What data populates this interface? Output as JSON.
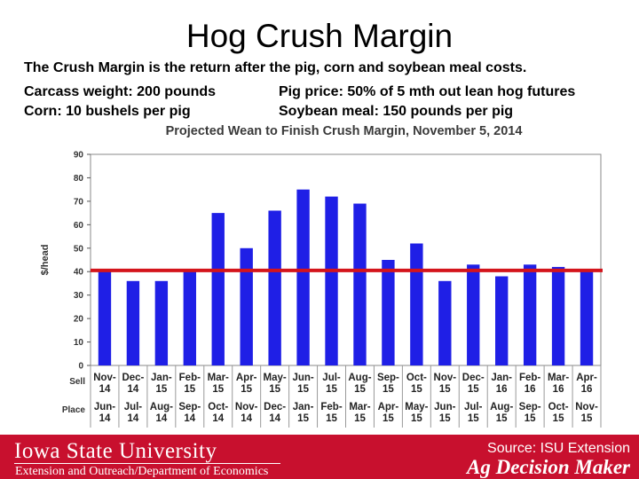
{
  "slide": {
    "title": "Hog Crush Margin",
    "line1": "The Crush Margin is the return after the pig, corn and soybean meal costs.",
    "line2_left": "Carcass weight:  200 pounds",
    "line2_right": "Pig price:  50% of 5 mth out lean hog futures",
    "line3_left": "Corn:  10 bushels per pig",
    "line3_right": "Soybean meal:  150 pounds per pig"
  },
  "footer": {
    "university": "Iowa State University",
    "department": "Extension and Outreach/Department of Economics",
    "source": "Source: ISU Extension",
    "brand": "Ag Decision Maker",
    "bar_color": "#c8102e"
  },
  "chart_data": {
    "type": "bar",
    "title": "Projected Wean to Finish Crush Margin, November 5, 2014",
    "ylabel": "$/head",
    "ylim": [
      0,
      90
    ],
    "yticks": [
      0,
      10,
      20,
      30,
      40,
      50,
      60,
      70,
      80,
      90
    ],
    "sell_row_label": "Sell",
    "place_row_label": "Place",
    "sell": [
      [
        "Nov-",
        "14"
      ],
      [
        "Dec-",
        "14"
      ],
      [
        "Jan-",
        "15"
      ],
      [
        "Feb-",
        "15"
      ],
      [
        "Mar-",
        "15"
      ],
      [
        "Apr-",
        "15"
      ],
      [
        "May-",
        "15"
      ],
      [
        "Jun-",
        "15"
      ],
      [
        "Jul-",
        "15"
      ],
      [
        "Aug-",
        "15"
      ],
      [
        "Sep-",
        "15"
      ],
      [
        "Oct-",
        "15"
      ],
      [
        "Nov-",
        "15"
      ],
      [
        "Dec-",
        "15"
      ],
      [
        "Jan-",
        "16"
      ],
      [
        "Feb-",
        "16"
      ],
      [
        "Mar-",
        "16"
      ],
      [
        "Apr-",
        "16"
      ]
    ],
    "place": [
      [
        "Jun-",
        "14"
      ],
      [
        "Jul-",
        "14"
      ],
      [
        "Aug-",
        "14"
      ],
      [
        "Sep-",
        "14"
      ],
      [
        "Oct-",
        "14"
      ],
      [
        "Nov-",
        "14"
      ],
      [
        "Dec-",
        "14"
      ],
      [
        "Jan-",
        "15"
      ],
      [
        "Feb-",
        "15"
      ],
      [
        "Mar-",
        "15"
      ],
      [
        "Apr-",
        "15"
      ],
      [
        "May-",
        "15"
      ],
      [
        "Jun-",
        "15"
      ],
      [
        "Jul-",
        "15"
      ],
      [
        "Aug-",
        "15"
      ],
      [
        "Sep-",
        "15"
      ],
      [
        "Oct-",
        "15"
      ],
      [
        "Nov-",
        "15"
      ]
    ],
    "values": [
      40,
      36,
      36,
      40,
      65,
      50,
      66,
      75,
      72,
      69,
      45,
      52,
      36,
      43,
      38,
      43,
      42,
      40
    ],
    "reference_line": 40.5,
    "bar_color": "#1f1fe6",
    "reference_color": "#d4141c",
    "grid": false
  }
}
